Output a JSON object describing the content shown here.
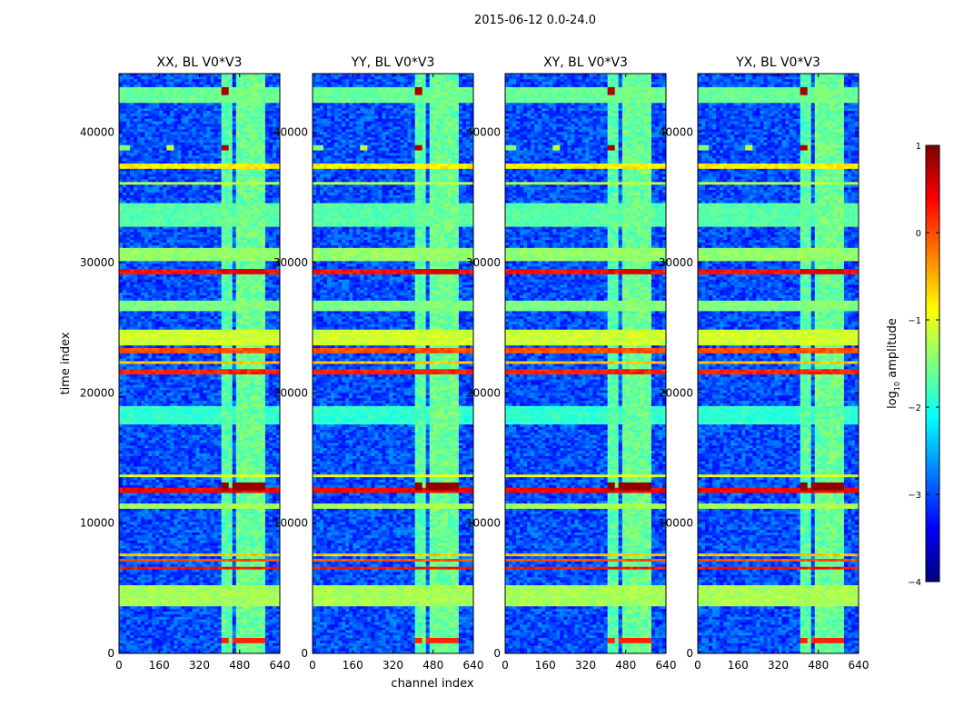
{
  "figure": {
    "suptitle": "2015-06-12 0.0-24.0",
    "xlabel": "channel index",
    "ylabel": "time index"
  },
  "colorbar": {
    "label_prefix": "log",
    "label_sub": "10",
    "label_suffix": " amplitude",
    "range": [
      -4,
      1
    ],
    "ticks": [
      "−4",
      "−3",
      "−2",
      "−1",
      "0",
      "1"
    ],
    "tick_values": [
      -4,
      -3,
      -2,
      -1,
      0,
      1
    ],
    "colormap": "jet",
    "colors": [
      "#00007f",
      "#0000ff",
      "#007fff",
      "#00ffff",
      "#7fff7f",
      "#ffff00",
      "#ff7f00",
      "#ff0000",
      "#7f0000"
    ]
  },
  "chart_data": {
    "type": "heatmap",
    "title": "2015-06-12 0.0-24.0",
    "xlabel": "channel index",
    "ylabel": "time index",
    "xlim": [
      0,
      640
    ],
    "ylim": [
      0,
      44500
    ],
    "x_ticks": [
      "0",
      "160",
      "320",
      "480",
      "640"
    ],
    "x_tick_values": [
      0,
      160,
      320,
      480,
      640
    ],
    "y_ticks": [
      "0",
      "10000",
      "20000",
      "30000",
      "40000"
    ],
    "y_tick_values": [
      0,
      10000,
      20000,
      30000,
      40000
    ],
    "colorscale_range": [
      -4,
      1
    ],
    "panels": [
      {
        "title": "XX, BL V0*V3"
      },
      {
        "title": "YY, BL V0*V3"
      },
      {
        "title": "XY, BL V0*V3"
      },
      {
        "title": "YX, BL V0*V3"
      }
    ],
    "background_level": -3.0,
    "channel_bands": [
      {
        "x0": 405,
        "x1": 450,
        "level": -1.7
      },
      {
        "x0": 460,
        "x1": 490,
        "level": -1.6
      },
      {
        "x0": 500,
        "x1": 535,
        "level": -1.6
      },
      {
        "x0": 545,
        "x1": 580,
        "level": -1.6
      }
    ],
    "time_bands": [
      {
        "y0": 3700,
        "y1": 5200,
        "level": -1.3
      },
      {
        "y0": 6500,
        "y1": 6700,
        "level": 0.3
      },
      {
        "y0": 7000,
        "y1": 7300,
        "level": 0.0
      },
      {
        "y0": 7500,
        "y1": 7700,
        "level": -0.6
      },
      {
        "y0": 11200,
        "y1": 11600,
        "level": -1.3
      },
      {
        "y0": 12400,
        "y1": 12700,
        "level": 0.4
      },
      {
        "y0": 13600,
        "y1": 13800,
        "level": -1.0
      },
      {
        "y0": 17500,
        "y1": 19000,
        "level": -1.9
      },
      {
        "y0": 21500,
        "y1": 21800,
        "level": 0.2
      },
      {
        "y0": 22200,
        "y1": 22500,
        "level": -0.6
      },
      {
        "y0": 23000,
        "y1": 23400,
        "level": 0.0
      },
      {
        "y0": 23700,
        "y1": 24800,
        "level": -1.1
      },
      {
        "y0": 26300,
        "y1": 27200,
        "level": -1.5
      },
      {
        "y0": 29200,
        "y1": 29600,
        "level": 0.3
      },
      {
        "y0": 30200,
        "y1": 31200,
        "level": -1.4
      },
      {
        "y0": 32800,
        "y1": 34500,
        "level": -1.7
      },
      {
        "y0": 36000,
        "y1": 36300,
        "level": -1.2
      },
      {
        "y0": 37200,
        "y1": 37600,
        "level": -0.8
      },
      {
        "y0": 42300,
        "y1": 43500,
        "level": -1.6
      }
    ],
    "hot_spots": [
      {
        "x": 420,
        "y": 12800,
        "level": 0.9
      },
      {
        "x": 475,
        "y": 12800,
        "level": 0.9
      },
      {
        "x": 515,
        "y": 12800,
        "level": 0.9
      },
      {
        "x": 560,
        "y": 12800,
        "level": 0.9
      },
      {
        "x": 420,
        "y": 29300,
        "level": 0.5
      },
      {
        "x": 475,
        "y": 29300,
        "level": 0.5
      },
      {
        "x": 515,
        "y": 29300,
        "level": 0.5
      },
      {
        "x": 560,
        "y": 29300,
        "level": 0.5
      },
      {
        "x": 420,
        "y": 1000,
        "level": 0.2
      },
      {
        "x": 475,
        "y": 1000,
        "level": 0.2
      },
      {
        "x": 515,
        "y": 1000,
        "level": 0.2
      },
      {
        "x": 560,
        "y": 1000,
        "level": 0.2
      },
      {
        "x": 425,
        "y": 38800,
        "level": 0.8
      },
      {
        "x": 425,
        "y": 43200,
        "level": 0.8
      },
      {
        "x": 200,
        "y": 38800,
        "level": -1.2
      },
      {
        "x": 20,
        "y": 38800,
        "level": -1.5
      }
    ]
  }
}
